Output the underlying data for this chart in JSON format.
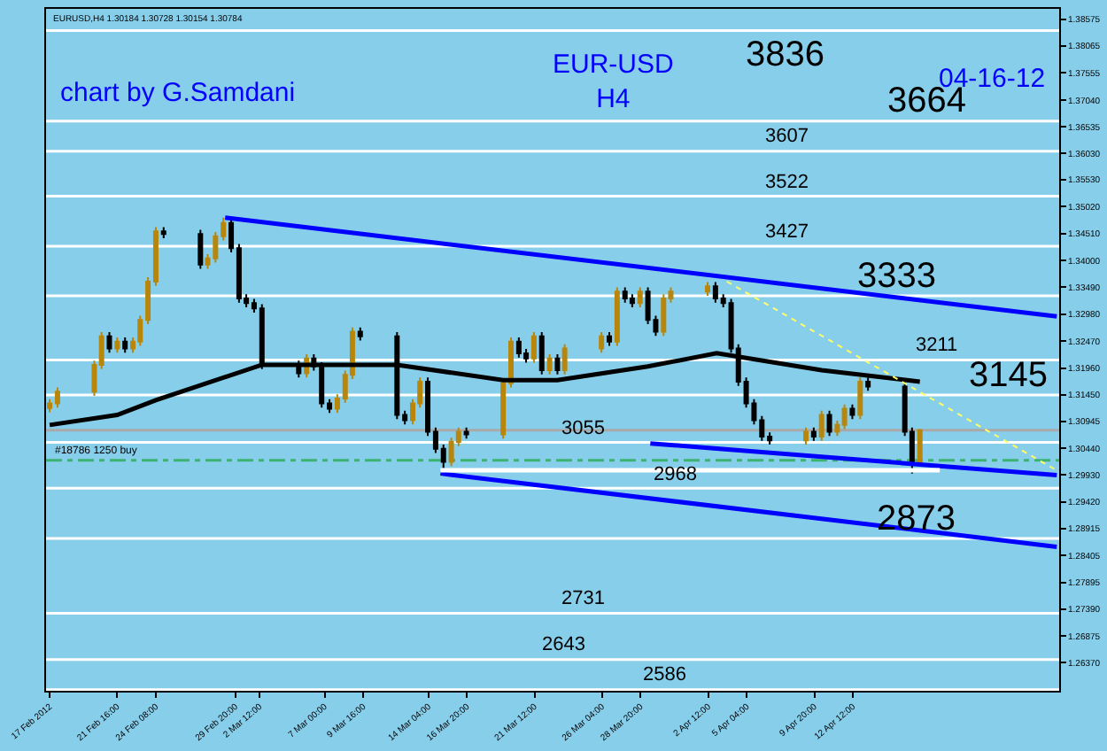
{
  "chart_data": {
    "type": "candlestick",
    "title": "EUR-USD",
    "subtitle": "H4",
    "annotations": [
      "chart by G.Samdani",
      "04-16-12",
      "EURUSD,H4 1.30184 1.30728 1.30154 1.30784",
      "3836",
      "3664",
      "3607",
      "3522",
      "3427",
      "3333",
      "3211",
      "3145",
      "3055",
      "2968",
      "2873",
      "2731",
      "2643",
      "2586"
    ],
    "x": [
      "2012-02-17T00:00",
      "2012-02-17T13:00",
      "2012-02-20T02:00",
      "2012-02-20T14:00",
      "2012-02-21T03:00",
      "2012-02-21T16:00",
      "2012-02-22T05:00",
      "2012-02-22T18:00",
      "2012-02-23T06:00",
      "2012-02-23T19:00",
      "2012-02-24T08:00",
      "2012-02-24T21:00",
      "2012-02-27T10:00",
      "2012-02-27T22:00",
      "2012-02-28T11:00",
      "2012-02-29T00:00",
      "2012-02-29T13:00",
      "2012-03-01T02:00",
      "2012-03-01T14:00",
      "2012-03-02T03:00",
      "2012-03-02T16:00",
      "2012-03-05T05:00",
      "2012-03-05T18:00",
      "2012-03-06T06:00",
      "2012-03-06T19:00",
      "2012-03-07T08:00",
      "2012-03-07T21:00",
      "2012-03-08T10:00",
      "2012-03-08T22:00",
      "2012-03-09T11:00",
      "2012-03-12T00:00",
      "2012-03-12T13:00",
      "2012-03-13T02:00",
      "2012-03-13T14:00",
      "2012-03-14T03:00",
      "2012-03-14T16:00",
      "2012-03-15T05:00",
      "2012-03-15T18:00",
      "2012-03-16T06:00",
      "2012-03-16T19:00",
      "2012-03-19T08:00",
      "2012-03-19T21:00",
      "2012-03-20T10:00",
      "2012-03-20T22:00",
      "2012-03-21T11:00",
      "2012-03-22T00:00",
      "2012-03-22T13:00",
      "2012-03-23T02:00",
      "2012-03-23T14:00",
      "2012-03-26T03:00",
      "2012-03-26T16:00",
      "2012-03-27T05:00",
      "2012-03-27T18:00",
      "2012-03-28T06:00",
      "2012-03-28T19:00",
      "2012-03-29T08:00",
      "2012-03-29T21:00",
      "2012-03-30T10:00",
      "2012-03-30T22:00",
      "2012-04-02T11:00",
      "2012-04-03T00:00",
      "2012-04-03T13:00",
      "2012-04-04T02:00",
      "2012-04-04T14:00",
      "2012-04-05T03:00",
      "2012-04-05T16:00",
      "2012-04-06T05:00",
      "2012-04-06T18:00",
      "2012-04-09T06:00",
      "2012-04-09T19:00",
      "2012-04-10T08:00",
      "2012-04-10T21:00",
      "2012-04-11T10:00",
      "2012-04-11T22:00",
      "2012-04-12T11:00",
      "2012-04-13T00:00",
      "2012-04-13T13:00",
      "2012-04-16T02:00",
      "2012-04-16T14:00",
      "2012-04-17T03:00"
    ],
    "ohlc": [
      [
        1.312,
        1.3137,
        1.3112,
        1.3129
      ],
      [
        1.3129,
        1.3159,
        1.3121,
        1.3151
      ],
      [
        1.3151,
        1.321,
        1.3143,
        1.3202
      ],
      [
        1.3202,
        1.3264,
        1.3194,
        1.3256
      ],
      [
        1.3256,
        1.3264,
        1.3225,
        1.3233
      ],
      [
        1.3233,
        1.3254,
        1.3225,
        1.3246
      ],
      [
        1.3246,
        1.3254,
        1.3225,
        1.3233
      ],
      [
        1.3233,
        1.3254,
        1.3225,
        1.3246
      ],
      [
        1.3246,
        1.3295,
        1.3238,
        1.3287
      ],
      [
        1.3287,
        1.3368,
        1.3279,
        1.336
      ],
      [
        1.336,
        1.3463,
        1.3352,
        1.3455
      ],
      [
        1.3455,
        1.3463,
        1.3442,
        1.345
      ],
      [
        1.345,
        1.3458,
        1.3384,
        1.3392
      ],
      [
        1.3392,
        1.3412,
        1.3384,
        1.3404
      ],
      [
        1.3404,
        1.3454,
        1.3396,
        1.3446
      ],
      [
        1.3446,
        1.3481,
        1.3438,
        1.3471
      ],
      [
        1.3471,
        1.3479,
        1.3415,
        1.3423
      ],
      [
        1.3423,
        1.3431,
        1.332,
        1.3328
      ],
      [
        1.3328,
        1.3336,
        1.3311,
        1.3319
      ],
      [
        1.3319,
        1.3327,
        1.3301,
        1.3309
      ],
      [
        1.3309,
        1.3317,
        1.3194,
        1.3202
      ],
      [
        1.3202,
        1.321,
        1.3178,
        1.3186
      ],
      [
        1.3186,
        1.3222,
        1.3178,
        1.3214
      ],
      [
        1.3214,
        1.3222,
        1.3191,
        1.3199
      ],
      [
        1.3199,
        1.3207,
        1.3121,
        1.3129
      ],
      [
        1.3129,
        1.3137,
        1.3111,
        1.3119
      ],
      [
        1.3119,
        1.3146,
        1.3111,
        1.3138
      ],
      [
        1.3138,
        1.3191,
        1.313,
        1.3183
      ],
      [
        1.3183,
        1.3273,
        1.3175,
        1.3265
      ],
      [
        1.3265,
        1.3273,
        1.3248,
        1.3256
      ],
      [
        1.3256,
        1.3264,
        1.3099,
        1.3107
      ],
      [
        1.3107,
        1.3115,
        1.3089,
        1.3097
      ],
      [
        1.3097,
        1.3137,
        1.3089,
        1.3129
      ],
      [
        1.3129,
        1.3178,
        1.3121,
        1.317
      ],
      [
        1.317,
        1.3178,
        1.3067,
        1.3075
      ],
      [
        1.3075,
        1.3083,
        1.3035,
        1.3043
      ],
      [
        1.3043,
        1.3051,
        1.3006,
        1.3018
      ],
      [
        1.3018,
        1.3064,
        1.301,
        1.3056
      ],
      [
        1.3056,
        1.3083,
        1.3048,
        1.3075
      ],
      [
        1.3075,
        1.3083,
        1.3062,
        1.307
      ],
      [
        1.307,
        1.3175,
        1.3062,
        1.3167
      ],
      [
        1.3167,
        1.3254,
        1.3159,
        1.3246
      ],
      [
        1.3246,
        1.3254,
        1.3216,
        1.3224
      ],
      [
        1.3224,
        1.3232,
        1.3206,
        1.3214
      ],
      [
        1.3214,
        1.3264,
        1.3206,
        1.3256
      ],
      [
        1.3256,
        1.3264,
        1.3184,
        1.3192
      ],
      [
        1.3192,
        1.3222,
        1.3184,
        1.3214
      ],
      [
        1.3214,
        1.3222,
        1.3184,
        1.3192
      ],
      [
        1.3192,
        1.3241,
        1.3184,
        1.3233
      ],
      [
        1.3233,
        1.3264,
        1.3225,
        1.3256
      ],
      [
        1.3256,
        1.3264,
        1.3238,
        1.3246
      ],
      [
        1.3246,
        1.3349,
        1.3238,
        1.3341
      ],
      [
        1.3341,
        1.3349,
        1.332,
        1.3328
      ],
      [
        1.3328,
        1.3336,
        1.3311,
        1.3319
      ],
      [
        1.3319,
        1.3349,
        1.3311,
        1.3341
      ],
      [
        1.3341,
        1.3349,
        1.3279,
        1.3287
      ],
      [
        1.3287,
        1.3295,
        1.3257,
        1.3265
      ],
      [
        1.3265,
        1.3336,
        1.3257,
        1.3328
      ],
      [
        1.3328,
        1.3349,
        1.332,
        1.3341
      ],
      [
        1.3341,
        1.3359,
        1.3333,
        1.3351
      ],
      [
        1.3351,
        1.3359,
        1.332,
        1.3328
      ],
      [
        1.3328,
        1.3336,
        1.3311,
        1.3319
      ],
      [
        1.3319,
        1.3327,
        1.3225,
        1.3233
      ],
      [
        1.3233,
        1.3241,
        1.3162,
        1.317
      ],
      [
        1.317,
        1.3178,
        1.3121,
        1.3129
      ],
      [
        1.3129,
        1.3137,
        1.3089,
        1.3097
      ],
      [
        1.3097,
        1.3105,
        1.3058,
        1.3066
      ],
      [
        1.3066,
        1.3074,
        1.3051,
        1.3059
      ],
      [
        1.3059,
        1.3083,
        1.3051,
        1.3075
      ],
      [
        1.3075,
        1.3083,
        1.3058,
        1.3066
      ],
      [
        1.3066,
        1.3115,
        1.3058,
        1.3107
      ],
      [
        1.3107,
        1.3115,
        1.3067,
        1.3075
      ],
      [
        1.3075,
        1.3096,
        1.3067,
        1.3088
      ],
      [
        1.3088,
        1.3127,
        1.308,
        1.3119
      ],
      [
        1.3119,
        1.3127,
        1.3099,
        1.3107
      ],
      [
        1.3107,
        1.3178,
        1.3099,
        1.317
      ],
      [
        1.317,
        1.3178,
        1.3153,
        1.3161
      ],
      [
        1.3161,
        1.3169,
        1.3067,
        1.3075
      ],
      [
        1.3075,
        1.3083,
        1.2996,
        1.3018
      ],
      [
        1.3018,
        1.308,
        1.3015,
        1.3078
      ]
    ],
    "colors": [
      "#b8860b",
      "#b8860b",
      "#b8860b",
      "#b8860b",
      "#000000",
      "#b8860b",
      "#000000",
      "#b8860b",
      "#b8860b",
      "#b8860b",
      "#b8860b",
      "#000000",
      "#000000",
      "#b8860b",
      "#b8860b",
      "#b8860b",
      "#000000",
      "#000000",
      "#000000",
      "#000000",
      "#000000",
      "#000000",
      "#b8860b",
      "#000000",
      "#000000",
      "#000000",
      "#b8860b",
      "#b8860b",
      "#b8860b",
      "#000000",
      "#000000",
      "#000000",
      "#b8860b",
      "#b8860b",
      "#000000",
      "#000000",
      "#000000",
      "#b8860b",
      "#b8860b",
      "#000000",
      "#b8860b",
      "#b8860b",
      "#000000",
      "#000000",
      "#b8860b",
      "#000000",
      "#b8860b",
      "#000000",
      "#b8860b",
      "#b8860b",
      "#000000",
      "#b8860b",
      "#000000",
      "#000000",
      "#b8860b",
      "#000000",
      "#000000",
      "#b8860b",
      "#b8860b",
      "#b8860b",
      "#000000",
      "#000000",
      "#000000",
      "#000000",
      "#000000",
      "#000000",
      "#000000",
      "#000000",
      "#b8860b",
      "#000000",
      "#b8860b",
      "#000000",
      "#b8860b",
      "#b8860b",
      "#000000",
      "#b8860b",
      "#000000",
      "#000000",
      "#000000",
      "#b8860b"
    ],
    "series": [
      {
        "type": "line",
        "color": "#000000",
        "x": [
          "2012-02-17T00:00",
          "2012-02-21T16:00",
          "2012-02-24T08:00",
          "2012-03-02T16:00",
          "2012-03-12T00:00",
          "2012-03-19T08:00",
          "2012-03-23T02:00",
          "2012-03-29T08:00",
          "2012-04-03T02:00",
          "2012-04-10T08:00",
          "2012-04-17T03:00"
        ],
        "values": [
          1.3088,
          1.3107,
          1.3135,
          1.3202,
          1.3202,
          1.3173,
          1.3173,
          1.3199,
          1.3224,
          1.3192,
          1.317
        ]
      },
      {
        "type": "line",
        "color": "#0000ff",
        "x": [
          "2012-02-29T03:00",
          "2012-04-26T14:00"
        ],
        "values": [
          1.3481,
          1.3294
        ]
      },
      {
        "type": "line",
        "color": "#0000ff",
        "x": [
          "2012-03-29T12:00",
          "2012-04-26T14:00"
        ],
        "values": [
          1.3053,
          1.2993
        ]
      },
      {
        "type": "line",
        "color": "#0000ff",
        "x": [
          "2012-03-15T00:00",
          "2012-04-26T14:00"
        ],
        "values": [
          1.2996,
          1.2857
        ]
      },
      {
        "type": "line",
        "color": "#ffff66",
        "line_style": "dotted",
        "x": [
          "2012-04-03T19:00",
          "2012-04-26T14:00"
        ],
        "values": [
          1.336,
          1.3002
        ]
      },
      {
        "type": "line",
        "color": "#ffffff",
        "x": [
          "2012-03-15T00:00",
          "2012-04-18T12:00"
        ],
        "values": [
          1.3002,
          1.3002
        ]
      }
    ],
    "ref_lines": [
      {
        "axis": "y",
        "value": 1.3836,
        "color": "#ffffff"
      },
      {
        "axis": "y",
        "value": 1.3664,
        "color": "#ffffff"
      },
      {
        "axis": "y",
        "value": 1.3607,
        "color": "#ffffff"
      },
      {
        "axis": "y",
        "value": 1.3522,
        "color": "#ffffff"
      },
      {
        "axis": "y",
        "value": 1.3427,
        "color": "#ffffff"
      },
      {
        "axis": "y",
        "value": 1.3333,
        "color": "#ffffff"
      },
      {
        "axis": "y",
        "value": 1.3211,
        "color": "#ffffff"
      },
      {
        "axis": "y",
        "value": 1.3145,
        "color": "#ffffff"
      },
      {
        "axis": "y",
        "value": 1.3055,
        "color": "#ffffff"
      },
      {
        "axis": "y",
        "value": 1.2968,
        "color": "#ffffff"
      },
      {
        "axis": "y",
        "value": 1.2873,
        "color": "#ffffff"
      },
      {
        "axis": "y",
        "value": 1.2731,
        "color": "#ffffff"
      },
      {
        "axis": "y",
        "value": 1.2643,
        "color": "#ffffff"
      },
      {
        "axis": "y",
        "value": 1.2586,
        "color": "#ffffff"
      },
      {
        "axis": "y",
        "value": 1.3078,
        "color": "#a9a9a9"
      },
      {
        "axis": "y",
        "value": 1.3021,
        "label": "#18786 1250 buy",
        "color": "#3cb371",
        "line_style": "dashed"
      }
    ],
    "xlim": [
      "2012-02-16T18:00",
      "2012-04-26T18:00"
    ],
    "xticks": [
      {
        "value": "2012-02-17T00:00",
        "label": "17 Feb 2012"
      },
      {
        "value": "2012-02-21T16:00",
        "label": "21 Feb 16:00"
      },
      {
        "value": "2012-02-24T08:00",
        "label": "24 Feb 08:00"
      },
      {
        "value": "2012-02-29T20:00",
        "label": "29 Feb 20:00"
      },
      {
        "value": "2012-03-02T12:00",
        "label": "2 Mar 12:00"
      },
      {
        "value": "2012-03-07T00:00",
        "label": "7 Mar 00:00"
      },
      {
        "value": "2012-03-09T16:00",
        "label": "9 Mar 16:00"
      },
      {
        "value": "2012-03-14T04:00",
        "label": "14 Mar 04:00"
      },
      {
        "value": "2012-03-16T20:00",
        "label": "16 Mar 20:00"
      },
      {
        "value": "2012-03-21T12:00",
        "label": "21 Mar 12:00"
      },
      {
        "value": "2012-03-26T04:00",
        "label": "26 Mar 04:00"
      },
      {
        "value": "2012-03-28T20:00",
        "label": "28 Mar 20:00"
      },
      {
        "value": "2012-04-02T12:00",
        "label": "2 Apr 12:00"
      },
      {
        "value": "2012-04-05T04:00",
        "label": "5 Apr 04:00"
      },
      {
        "value": "2012-04-09T20:00",
        "label": "9 Apr 20:00"
      },
      {
        "value": "2012-04-12T12:00",
        "label": "12 Apr 12:00"
      }
    ],
    "ylim": [
      1.2584,
      1.3877
    ],
    "yticks": [
      {
        "value": 1.38575,
        "label": "1.38575"
      },
      {
        "value": 1.38065,
        "label": "1.38065"
      },
      {
        "value": 1.37555,
        "label": "1.37555"
      },
      {
        "value": 1.3704,
        "label": "1.37040"
      },
      {
        "value": 1.36535,
        "label": "1.36535"
      },
      {
        "value": 1.3603,
        "label": "1.36030"
      },
      {
        "value": 1.3553,
        "label": "1.35530"
      },
      {
        "value": 1.3502,
        "label": "1.35020"
      },
      {
        "value": 1.3451,
        "label": "1.34510"
      },
      {
        "value": 1.34,
        "label": "1.34000"
      },
      {
        "value": 1.3349,
        "label": "1.33490"
      },
      {
        "value": 1.3298,
        "label": "1.32980"
      },
      {
        "value": 1.3247,
        "label": "1.32470"
      },
      {
        "value": 1.3196,
        "label": "1.31960"
      },
      {
        "value": 1.3145,
        "label": "1.31450"
      },
      {
        "value": 1.30945,
        "label": "1.30945"
      },
      {
        "value": 1.3044,
        "label": "1.30440"
      },
      {
        "value": 1.2993,
        "label": "1.29930"
      },
      {
        "value": 1.2942,
        "label": "1.29420"
      },
      {
        "value": 1.28915,
        "label": "1.28915"
      },
      {
        "value": 1.28405,
        "label": "1.28405"
      },
      {
        "value": 1.27895,
        "label": "1.27895"
      },
      {
        "value": 1.2739,
        "label": "1.27390"
      },
      {
        "value": 1.26875,
        "label": "1.26875"
      },
      {
        "value": 1.2637,
        "label": "1.26370"
      }
    ],
    "grid": false
  }
}
